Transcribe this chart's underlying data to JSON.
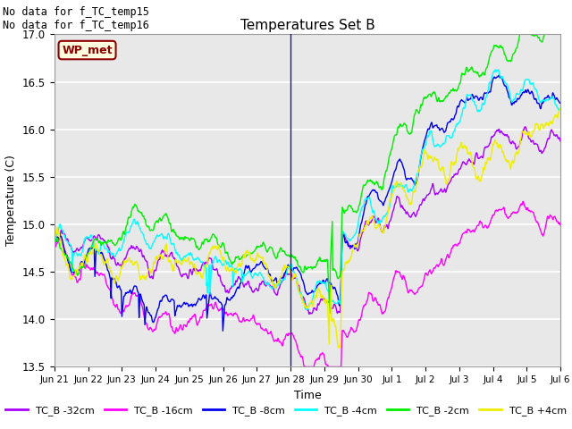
{
  "title": "Temperatures Set B",
  "xlabel": "Time",
  "ylabel": "Temperature (C)",
  "ylim": [
    13.5,
    17.0
  ],
  "annotation_text1": "No data for f_TC_temp15",
  "annotation_text2": "No data for f_TC_temp16",
  "wp_met_label": "WP_met",
  "legend_labels": [
    "TC_B -32cm",
    "TC_B -16cm",
    "TC_B -8cm",
    "TC_B -4cm",
    "TC_B -2cm",
    "TC_B +4cm"
  ],
  "line_colors": [
    "#aa00ff",
    "#ff00ff",
    "#0000ee",
    "#00ffff",
    "#00ee00",
    "#eeee00"
  ],
  "xtick_labels": [
    "Jun 21",
    "Jun 22",
    "Jun 23",
    "Jun 24",
    "Jun 25",
    "Jun 26",
    "Jun 27",
    "Jun 28",
    "Jun 29",
    "Jun 30",
    "Jul 1",
    "Jul 2",
    "Jul 3",
    "Jul 4",
    "Jul 5",
    "Jul 6"
  ],
  "background_color": "#e8e8e8",
  "fig_background": "#ffffff",
  "grid_color": "#ffffff",
  "n_points": 1500,
  "vline_day": 7.5
}
